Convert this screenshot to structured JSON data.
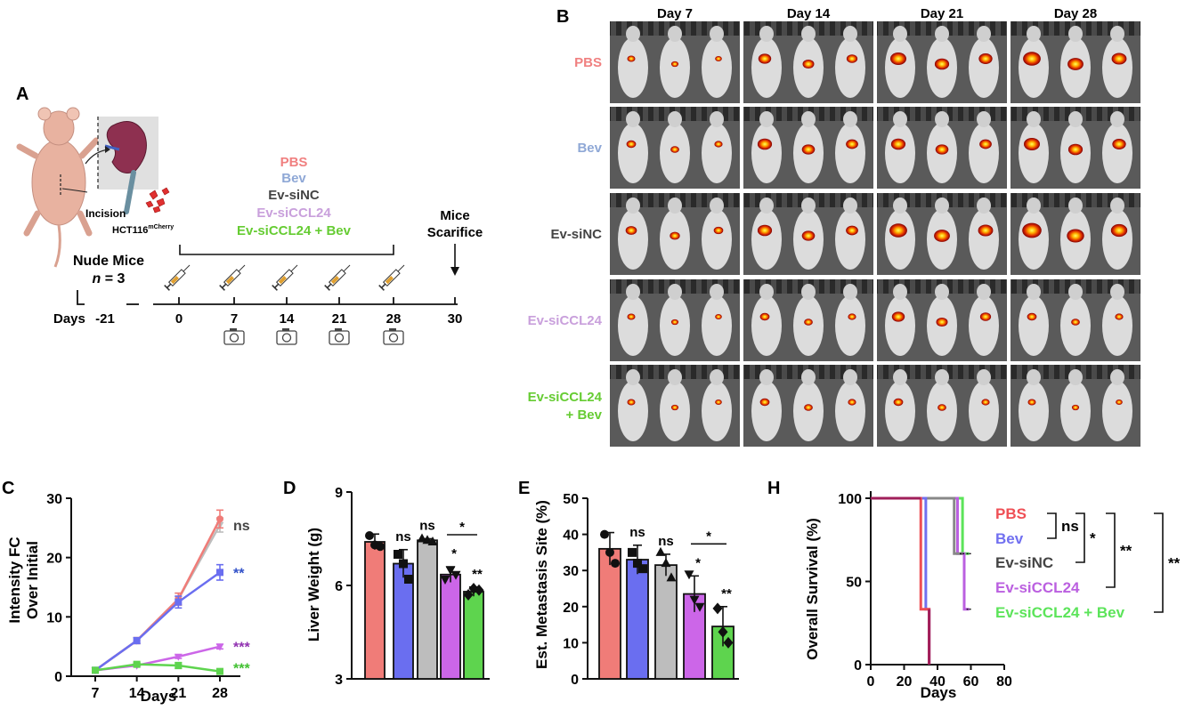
{
  "colors": {
    "pbs": "#f07c78",
    "bev": "#6a6ef0",
    "sinc": "#bdbdbd",
    "siccl24": "#cc66e8",
    "combo": "#5ed44e",
    "pbs_label": "#f08080",
    "bev_label": "#8fa8d6",
    "sinc_label": "#444444",
    "siccl24_label": "#c9a0dc",
    "combo_label": "#66cc33",
    "h_pbs": "#ef4f55",
    "h_bev": "#7170f0",
    "h_sinc": "#888888",
    "h_siccl24": "#bb60e0",
    "h_combo": "#5ce45a",
    "h_combined": "#a01e5a",
    "sig_blue": "#3050c8",
    "sig_purple": "#9030b0",
    "sig_green": "#40c030"
  },
  "panelA": {
    "letter": "A",
    "incision": "Incision",
    "cell_base": "HCT116",
    "cell_sup": "mCherry",
    "groups": [
      "PBS",
      "Bev",
      "Ev-siNC",
      "Ev-siCCL24",
      "Ev-siCCL24 + Bev"
    ],
    "nude_mice": "Nude Mice",
    "n_italic": "n",
    "n_rest": " = 3",
    "scarifice_1": "Mice",
    "scarifice_2": "Scarifice",
    "days_label": "Days",
    "days": [
      "-21",
      "0",
      "7",
      "14",
      "21",
      "28",
      "30"
    ]
  },
  "panelB": {
    "letter": "B",
    "columns": [
      "Day 7",
      "Day 14",
      "Day 21",
      "Day 28"
    ],
    "rows": [
      "PBS",
      "Bev",
      "Ev-siNC",
      "Ev-siCCL24",
      "Ev-siCCL24\n+ Bev"
    ],
    "row_lines": [
      [
        "PBS"
      ],
      [
        "Bev"
      ],
      [
        "Ev-siNC"
      ],
      [
        "Ev-siCCL24"
      ],
      [
        "Ev-siCCL24",
        "+ Bev"
      ]
    ]
  },
  "chart_data": [
    {
      "panel": "C",
      "type": "line",
      "xlabel": "Days",
      "ylabel": "Intensity FC Over Initial",
      "ylabel_lines": [
        "Intensity FC",
        "Over Initial"
      ],
      "x": [
        7,
        14,
        21,
        28
      ],
      "xticks": [
        "7",
        "14",
        "21",
        "28"
      ],
      "ylim": [
        0,
        30
      ],
      "yticks": [
        0,
        10,
        20,
        30
      ],
      "series": [
        {
          "values": [
            1,
            6,
            13,
            25.5
          ],
          "err": [
            0.2,
            0.5,
            1.0,
            1.2
          ],
          "color_key": "sinc",
          "marker": "triangle-down"
        },
        {
          "values": [
            1,
            6,
            13,
            26.5
          ],
          "err": [
            0.2,
            0.5,
            1.0,
            1.5
          ],
          "color_key": "pbs",
          "marker": "circle"
        },
        {
          "values": [
            1,
            6,
            12.5,
            17.5
          ],
          "err": [
            0.2,
            0.5,
            1.0,
            1.3
          ],
          "color_key": "bev",
          "marker": "square"
        },
        {
          "values": [
            1,
            1.8,
            3.3,
            5
          ],
          "err": [
            0.1,
            0.2,
            0.3,
            0.4
          ],
          "color_key": "siccl24",
          "marker": "triangle-down"
        },
        {
          "values": [
            1,
            2,
            1.8,
            0.8
          ],
          "err": [
            0.1,
            0.2,
            0.5,
            0.2
          ],
          "color_key": "combo",
          "marker": "square"
        }
      ],
      "sig": [
        {
          "label": "ns",
          "y": 25.5,
          "color_key": "sinc_label"
        },
        {
          "label": "**",
          "y": 17.5,
          "color_key": "sig_blue"
        },
        {
          "label": "***",
          "y": 5,
          "color_key": "sig_purple"
        },
        {
          "label": "***",
          "y": 0.8,
          "color_key": "sig_green"
        }
      ]
    },
    {
      "panel": "D",
      "type": "bar",
      "ylabel": "Liver Weight (g)",
      "ylim": [
        3,
        9
      ],
      "yticks": [
        3,
        6,
        9
      ],
      "values": [
        7.4,
        6.7,
        7.45,
        6.35,
        5.8
      ],
      "err": [
        0.25,
        0.45,
        0.05,
        0.25,
        0.15
      ],
      "points": [
        [
          7.6,
          7.3,
          7.25
        ],
        [
          7.0,
          6.7,
          6.2
        ],
        [
          7.5,
          7.45,
          7.4
        ],
        [
          6.2,
          6.5,
          6.35
        ],
        [
          5.7,
          5.9,
          5.85
        ]
      ],
      "color_keys": [
        "pbs",
        "bev",
        "sinc",
        "siccl24",
        "combo"
      ],
      "markers": [
        "circle",
        "square",
        "triangle-up",
        "triangle-down",
        "diamond"
      ],
      "sig": [
        "",
        "ns",
        "ns",
        "*",
        "**"
      ],
      "bracket_label": "*"
    },
    {
      "panel": "E",
      "type": "bar",
      "ylabel": "Est. Metastasis Site (%)",
      "ylim": [
        0,
        50
      ],
      "yticks": [
        0,
        10,
        20,
        30,
        40,
        50
      ],
      "values": [
        36,
        33,
        31.5,
        23.5,
        14.5
      ],
      "err": [
        4.5,
        4,
        3,
        5,
        5.5
      ],
      "points": [
        [
          40,
          35,
          32
        ],
        [
          35,
          32,
          30.5
        ],
        [
          35,
          32,
          28
        ],
        [
          29,
          22,
          20
        ],
        [
          19.5,
          13,
          10
        ]
      ],
      "color_keys": [
        "pbs",
        "bev",
        "sinc",
        "siccl24",
        "combo"
      ],
      "markers": [
        "circle",
        "square",
        "triangle-up",
        "triangle-down",
        "diamond"
      ],
      "sig": [
        "",
        "ns",
        "ns",
        "*",
        "**"
      ],
      "bracket_label": "*"
    },
    {
      "panel": "H",
      "type": "line",
      "xlabel": "Days",
      "ylabel": "Overall Survival (%)",
      "xlim": [
        0,
        80
      ],
      "xticks": [
        0,
        20,
        40,
        60,
        80
      ],
      "ylim": [
        0,
        100
      ],
      "yticks": [
        0,
        50,
        100
      ],
      "series": [
        {
          "name": "PBS",
          "steps": [
            [
              0,
              100
            ],
            [
              30,
              100
            ],
            [
              30,
              33.3
            ],
            [
              35,
              33.3
            ],
            [
              35,
              0
            ]
          ],
          "color_key": "h_pbs"
        },
        {
          "name": "Bev",
          "steps": [
            [
              0,
              100
            ],
            [
              33,
              100
            ],
            [
              33,
              33.3
            ],
            [
              35,
              33.3
            ],
            [
              35,
              0
            ]
          ],
          "color_key": "h_bev"
        },
        {
          "name": "Ev-siNC",
          "steps": [
            [
              0,
              100
            ],
            [
              50,
              100
            ],
            [
              50,
              66.7
            ],
            [
              55,
              66.7
            ]
          ],
          "color_key": "h_sinc"
        },
        {
          "name": "Ev-siCCL24",
          "steps": [
            [
              0,
              100
            ],
            [
              52,
              100
            ],
            [
              52,
              66.7
            ],
            [
              56,
              66.7
            ],
            [
              56,
              33.3
            ],
            [
              59,
              33.3
            ]
          ],
          "color_key": "h_siccl24"
        },
        {
          "name": "Ev-siCCL24 + Bev",
          "steps": [
            [
              0,
              100
            ],
            [
              55,
              100
            ],
            [
              55,
              66.7
            ],
            [
              59,
              66.7
            ]
          ],
          "color_key": "h_combo"
        }
      ],
      "legend_color_keys": [
        "h_pbs",
        "h_bev",
        "sinc_label",
        "h_siccl24",
        "h_combo"
      ],
      "comparisons": [
        "ns",
        "*",
        "**",
        "**"
      ]
    }
  ]
}
